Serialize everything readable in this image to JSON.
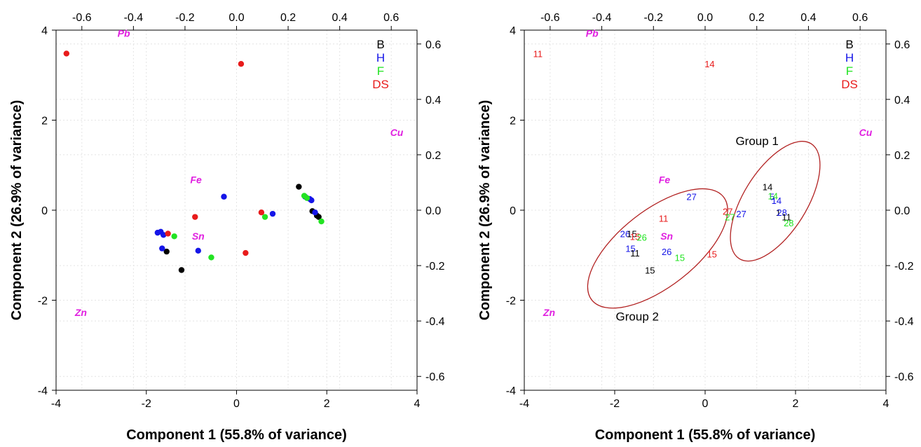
{
  "chart_data": [
    {
      "type": "scatter",
      "panel": "left",
      "xlabel": "Component 1 (55.8% of variance)",
      "ylabel": "Component 2 (26.9% of variance)",
      "xlim": [
        -4,
        4
      ],
      "ylim": [
        -4,
        4
      ],
      "xticks": [
        "-4",
        "-2",
        "0",
        "2",
        "4"
      ],
      "yticks": [
        "-4",
        "-2",
        "0",
        "2",
        "4"
      ],
      "top_axis_lim": [
        -0.7,
        0.7
      ],
      "right_axis_lim": [
        -0.65,
        0.65
      ],
      "top_ticks": [
        "-0.6",
        "-0.4",
        "-0.2",
        "0.0",
        "0.2",
        "0.4",
        "0.6"
      ],
      "right_ticks": [
        "-0.6",
        "-0.4",
        "-0.2",
        "0.0",
        "0.2",
        "0.4",
        "0.6"
      ],
      "grid": true,
      "legend_position": "top-right",
      "legend": [
        {
          "name": "B",
          "color": "#000000"
        },
        {
          "name": "H",
          "color": "#1515e8"
        },
        {
          "name": "F",
          "color": "#22e322"
        },
        {
          "name": "DS",
          "color": "#e81b1b"
        }
      ],
      "loadings": [
        {
          "label": "Pb",
          "x": -2.5,
          "y": 3.85
        },
        {
          "label": "Cu",
          "x": 3.55,
          "y": 1.65
        },
        {
          "label": "Fe",
          "x": -0.9,
          "y": 0.6
        },
        {
          "label": "Sn",
          "x": -0.85,
          "y": -0.65
        },
        {
          "label": "Zn",
          "x": -3.45,
          "y": -2.35
        }
      ],
      "series": [
        {
          "name": "B",
          "points": [
            [
              1.38,
              0.52
            ],
            [
              1.68,
              -0.02
            ],
            [
              1.78,
              -0.12
            ],
            [
              1.82,
              -0.15
            ],
            [
              -1.55,
              -0.92
            ],
            [
              -1.22,
              -1.33
            ]
          ]
        },
        {
          "name": "H",
          "points": [
            [
              1.52,
              0.3
            ],
            [
              1.62,
              0.25
            ],
            [
              1.66,
              0.22
            ],
            [
              1.74,
              -0.05
            ],
            [
              0.8,
              -0.08
            ],
            [
              -0.28,
              0.3
            ],
            [
              -1.75,
              -0.5
            ],
            [
              -1.68,
              -0.48
            ],
            [
              -1.62,
              -0.55
            ],
            [
              -1.65,
              -0.85
            ],
            [
              -0.85,
              -0.9
            ]
          ]
        },
        {
          "name": "F",
          "points": [
            [
              1.5,
              0.32
            ],
            [
              1.56,
              0.27
            ],
            [
              1.88,
              -0.25
            ],
            [
              0.63,
              -0.15
            ],
            [
              -1.38,
              -0.58
            ],
            [
              -0.56,
              -1.05
            ]
          ]
        },
        {
          "name": "DS",
          "points": [
            [
              -3.77,
              3.48
            ],
            [
              0.1,
              3.25
            ],
            [
              0.55,
              -0.05
            ],
            [
              0.2,
              -0.95
            ],
            [
              -0.92,
              -0.15
            ],
            [
              -1.52,
              -0.52
            ]
          ]
        }
      ]
    },
    {
      "type": "scatter",
      "panel": "right",
      "xlabel": "Component 1 (55.8% of variance)",
      "ylabel": "Component 2 (26.9% of variance)",
      "xlim": [
        -4,
        4
      ],
      "ylim": [
        -4,
        4
      ],
      "xticks": [
        "-4",
        "-2",
        "0",
        "2",
        "4"
      ],
      "yticks": [
        "-4",
        "-2",
        "0",
        "2",
        "4"
      ],
      "top_axis_lim": [
        -0.7,
        0.7
      ],
      "right_axis_lim": [
        -0.65,
        0.65
      ],
      "top_ticks": [
        "-0.6",
        "-0.4",
        "-0.2",
        "0.0",
        "0.2",
        "0.4",
        "0.6"
      ],
      "right_ticks": [
        "-0.6",
        "-0.4",
        "-0.2",
        "0.0",
        "0.2",
        "0.4",
        "0.6"
      ],
      "grid": true,
      "legend_position": "top-right",
      "legend": [
        {
          "name": "B",
          "color": "#000000"
        },
        {
          "name": "H",
          "color": "#1515e8"
        },
        {
          "name": "F",
          "color": "#22e322"
        },
        {
          "name": "DS",
          "color": "#e81b1b"
        }
      ],
      "loadings": [
        {
          "label": "Pb",
          "x": -2.5,
          "y": 3.85
        },
        {
          "label": "Cu",
          "x": 3.55,
          "y": 1.65
        },
        {
          "label": "Fe",
          "x": -0.9,
          "y": 0.6
        },
        {
          "label": "Sn",
          "x": -0.85,
          "y": -0.65
        },
        {
          "label": "Zn",
          "x": -3.45,
          "y": -2.35
        }
      ],
      "groups": [
        {
          "label": "Group 1",
          "cx": 1.55,
          "cy": 0.2,
          "rx": 1.5,
          "ry": 0.7,
          "angle": -58,
          "label_x": 1.15,
          "label_y": 1.45
        },
        {
          "label": "Group 2",
          "cx": -1.05,
          "cy": -0.85,
          "rx": 1.85,
          "ry": 0.85,
          "angle": -38,
          "label_x": -1.5,
          "label_y": -2.45
        }
      ],
      "labeled_points": [
        {
          "text": "11",
          "x": -3.7,
          "y": 3.48,
          "series": "DS"
        },
        {
          "text": "14",
          "x": 0.1,
          "y": 3.25,
          "series": "DS"
        },
        {
          "text": "14",
          "x": 1.38,
          "y": 0.52,
          "series": "B"
        },
        {
          "text": "5",
          "x": 1.48,
          "y": 0.3,
          "series": "H"
        },
        {
          "text": "14",
          "x": 1.58,
          "y": 0.22,
          "series": "H"
        },
        {
          "text": "14",
          "x": 1.5,
          "y": 0.32,
          "series": "F"
        },
        {
          "text": "27",
          "x": -0.3,
          "y": 0.3,
          "series": "H"
        },
        {
          "text": "27",
          "x": 0.5,
          "y": -0.02,
          "series": "DS"
        },
        {
          "text": "27",
          "x": 0.55,
          "y": -0.15,
          "series": "F"
        },
        {
          "text": "27",
          "x": 0.8,
          "y": -0.08,
          "series": "H"
        },
        {
          "text": "1",
          "x": 1.62,
          "y": -0.05,
          "series": "B"
        },
        {
          "text": "28",
          "x": 1.7,
          "y": -0.05,
          "series": "H"
        },
        {
          "text": "11",
          "x": 1.8,
          "y": -0.15,
          "series": "B"
        },
        {
          "text": "28",
          "x": 1.85,
          "y": -0.28,
          "series": "F"
        },
        {
          "text": "11",
          "x": -0.92,
          "y": -0.18,
          "series": "DS"
        },
        {
          "text": "26",
          "x": -1.77,
          "y": -0.52,
          "series": "H"
        },
        {
          "text": "15",
          "x": -1.62,
          "y": -0.52,
          "series": "B"
        },
        {
          "text": "15",
          "x": -1.55,
          "y": -0.58,
          "series": "DS"
        },
        {
          "text": "26",
          "x": -1.4,
          "y": -0.6,
          "series": "F"
        },
        {
          "text": "15",
          "x": -1.65,
          "y": -0.85,
          "series": "H"
        },
        {
          "text": "11",
          "x": -1.55,
          "y": -0.95,
          "series": "B"
        },
        {
          "text": "26",
          "x": -0.85,
          "y": -0.92,
          "series": "H"
        },
        {
          "text": "15",
          "x": -0.56,
          "y": -1.05,
          "series": "F"
        },
        {
          "text": "15",
          "x": 0.15,
          "y": -0.97,
          "series": "DS"
        },
        {
          "text": "15",
          "x": -1.22,
          "y": -1.33,
          "series": "B"
        }
      ]
    }
  ]
}
